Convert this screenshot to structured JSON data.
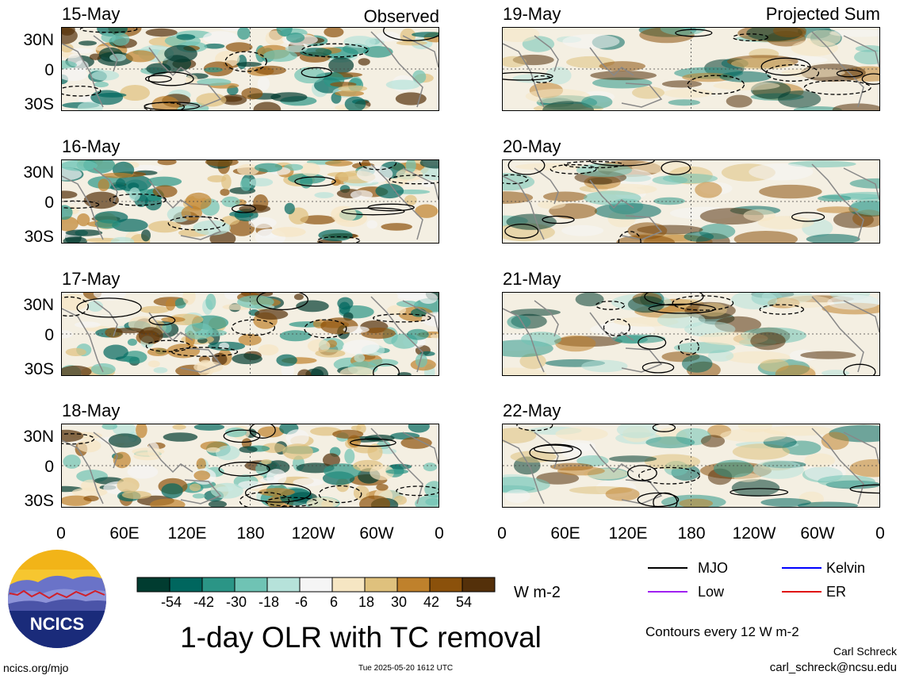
{
  "title": "1-day OLR with TC removal",
  "observed_label": "Observed",
  "projected_label": "Projected Sum",
  "units": "W m-2",
  "contour_note": "Contours every 12 W m-2",
  "author": "Carl Schreck",
  "email": "carl_schreck@ncsu.edu",
  "website": "ncics.org/mjo",
  "timestamp": "Tue 2025-05-20 1612 UTC",
  "logo_text": "NCICS",
  "chart_data": {
    "type": "heatmap",
    "panels": [
      {
        "date": "15-May",
        "column": "observed"
      },
      {
        "date": "16-May",
        "column": "observed"
      },
      {
        "date": "17-May",
        "column": "observed"
      },
      {
        "date": "18-May",
        "column": "observed"
      },
      {
        "date": "19-May",
        "column": "projected"
      },
      {
        "date": "20-May",
        "column": "projected"
      },
      {
        "date": "21-May",
        "column": "projected"
      },
      {
        "date": "22-May",
        "column": "projected"
      }
    ],
    "lat_ticks": [
      "30N",
      "0",
      "30S"
    ],
    "lon_ticks": [
      "0",
      "60E",
      "120E",
      "180",
      "120W",
      "60W",
      "0"
    ],
    "colorbar": {
      "ticks": [
        "-54",
        "-42",
        "-30",
        "-18",
        "-6",
        "6",
        "18",
        "30",
        "42",
        "54"
      ],
      "colors": [
        "#013c30",
        "#00665e",
        "#2b9586",
        "#6fc3b4",
        "#b6e2da",
        "#f5f5f5",
        "#f6e6c3",
        "#dfc17d",
        "#bf812c",
        "#8b510b",
        "#54300a"
      ]
    },
    "legend": [
      {
        "name": "MJO",
        "color": "#000000"
      },
      {
        "name": "Kelvin",
        "color": "#0000ff"
      },
      {
        "name": "Low",
        "color": "#a020f0"
      },
      {
        "name": "ER",
        "color": "#e01010"
      }
    ]
  }
}
